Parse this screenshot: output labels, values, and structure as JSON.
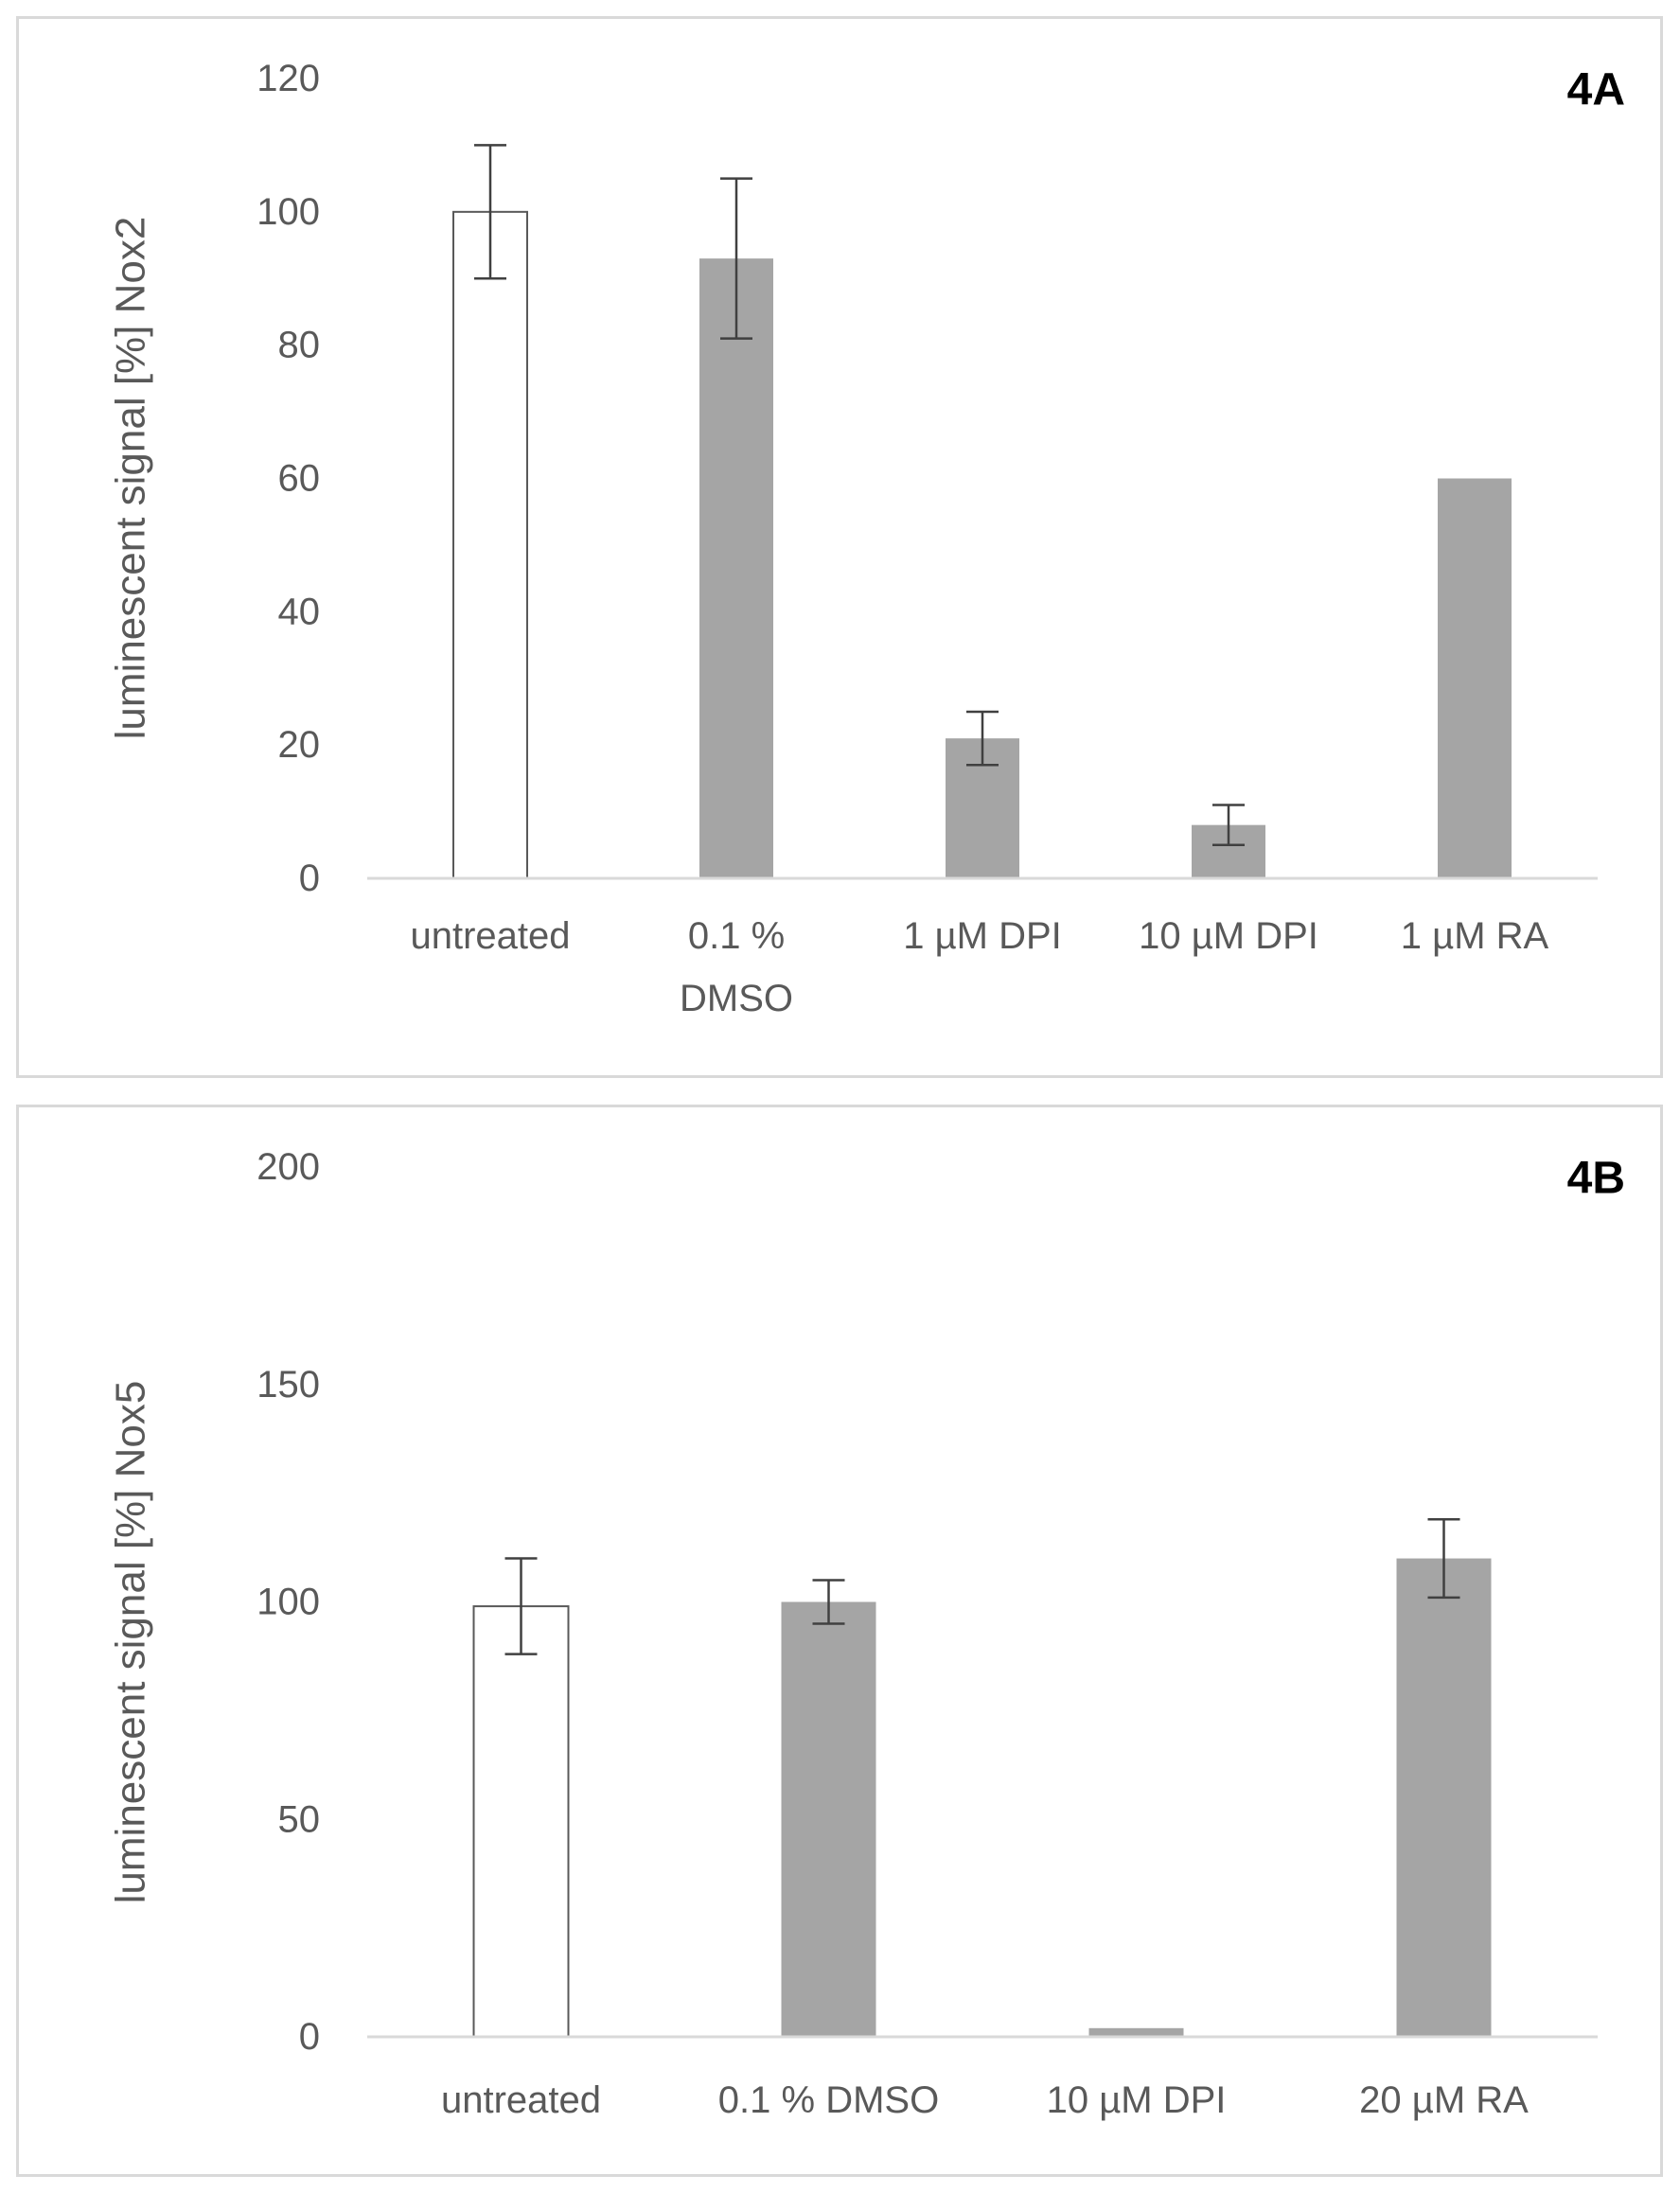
{
  "chart_data": [
    {
      "type": "bar",
      "panel_label": "4A",
      "title": "",
      "xlabel": "",
      "ylabel": "luminescent signal [%] Nox2",
      "ylim": [
        0,
        120
      ],
      "yticks": [
        0,
        20,
        40,
        60,
        80,
        100,
        120
      ],
      "grid": false,
      "categories": [
        [
          "untreated"
        ],
        [
          "0.1 %",
          "DMSO"
        ],
        [
          "1 µM DPI"
        ],
        [
          "10 µM DPI"
        ],
        [
          "1 µM RA"
        ]
      ],
      "values": [
        100,
        93,
        21,
        8,
        60
      ],
      "errors": [
        10,
        12,
        4,
        3,
        null
      ],
      "bar_fills": [
        "#ffffff",
        "#a5a5a5",
        "#a5a5a5",
        "#a5a5a5",
        "#a5a5a5"
      ]
    },
    {
      "type": "bar",
      "panel_label": "4B",
      "title": "",
      "xlabel": "",
      "ylabel": "luminescent signal [%] Nox5",
      "ylim": [
        0,
        200
      ],
      "yticks": [
        0,
        50,
        100,
        150,
        200
      ],
      "grid": false,
      "categories": [
        [
          "untreated"
        ],
        [
          "0.1 % DMSO"
        ],
        [
          "10 µM DPI"
        ],
        [
          "20 µM RA"
        ]
      ],
      "values": [
        99,
        100,
        2,
        110
      ],
      "errors": [
        11,
        5,
        null,
        9
      ],
      "bar_fills": [
        "#ffffff",
        "#a5a5a5",
        "#a5a5a5",
        "#a5a5a5"
      ]
    }
  ],
  "colors": {
    "bar_outline": "#595959",
    "axis": "#d9d9d9",
    "error_bar": "#404040",
    "text": "#595959"
  }
}
